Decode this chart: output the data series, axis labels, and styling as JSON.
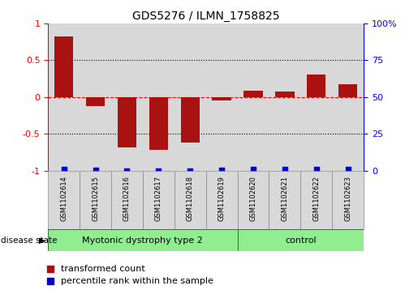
{
  "title": "GDS5276 / ILMN_1758825",
  "samples": [
    "GSM1102614",
    "GSM1102615",
    "GSM1102616",
    "GSM1102617",
    "GSM1102618",
    "GSM1102619",
    "GSM1102620",
    "GSM1102621",
    "GSM1102622",
    "GSM1102623"
  ],
  "transformed_count": [
    0.82,
    -0.12,
    -0.68,
    -0.72,
    -0.62,
    -0.05,
    0.09,
    0.07,
    0.31,
    0.17
  ],
  "percentile_rank": [
    0.98,
    0.14,
    0.02,
    0.02,
    0.02,
    0.56,
    0.7,
    0.6,
    0.95,
    0.86
  ],
  "bar_color": "#AA1111",
  "dot_color": "#0000CC",
  "disease_groups": [
    {
      "label": "Myotonic dystrophy type 2",
      "count": 6,
      "color": "#90EE90"
    },
    {
      "label": "control",
      "count": 4,
      "color": "#90EE90"
    }
  ],
  "ylim_left": [
    -1.0,
    1.0
  ],
  "ylim_right": [
    0,
    100
  ],
  "yticks_left": [
    -1,
    -0.5,
    0,
    0.5,
    1
  ],
  "ytick_labels_left": [
    "-1",
    "-0.5",
    "0",
    "0.5",
    "1"
  ],
  "yticks_right": [
    0,
    25,
    50,
    75,
    100
  ],
  "ytick_labels_right": [
    "0",
    "25",
    "50",
    "75",
    "100%"
  ],
  "bg_color": "#D8D8D8",
  "legend_items": [
    {
      "label": "transformed count",
      "color": "#AA1111"
    },
    {
      "label": "percentile rank within the sample",
      "color": "#0000CC"
    }
  ]
}
